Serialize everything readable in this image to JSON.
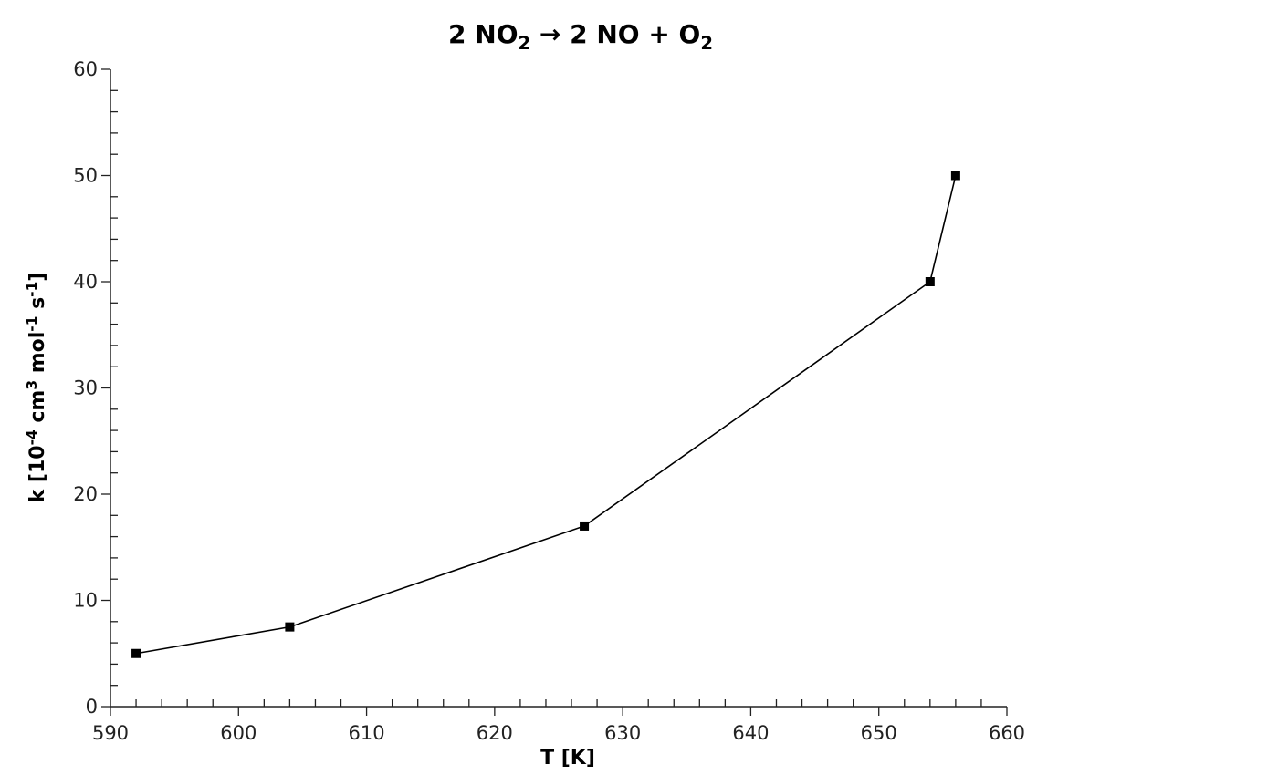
{
  "chart_data": {
    "type": "line",
    "title": "2 NO2 → 2 NO + O2",
    "title_parts": {
      "a": "2 NO",
      "a_sub": "2",
      "b": " → 2 NO + O",
      "b_sub": "2"
    },
    "xlabel": "T [K]",
    "ylabel": "k [10⁻⁴ cm³ mol⁻¹ s⁻¹]",
    "ylabel_parts": {
      "p1": "k [10",
      "s1": "-4",
      "p2": " cm",
      "s2": "3",
      "p3": " mol",
      "s3": "-1",
      "p4": " s",
      "s4": "-1",
      "p5": "]"
    },
    "xlim": [
      590,
      660
    ],
    "ylim": [
      0,
      60
    ],
    "xticks": [
      590,
      600,
      610,
      620,
      630,
      640,
      650,
      660
    ],
    "yticks": [
      0,
      10,
      20,
      30,
      40,
      50,
      60
    ],
    "x_minor_step": 2,
    "y_minor_step": 2,
    "grid": false,
    "legend": "none",
    "line_color": "#000000",
    "marker": "square",
    "series": [
      {
        "x": [
          592,
          604,
          627,
          654,
          656
        ],
        "y": [
          5,
          7.5,
          17,
          40,
          50
        ]
      }
    ]
  }
}
